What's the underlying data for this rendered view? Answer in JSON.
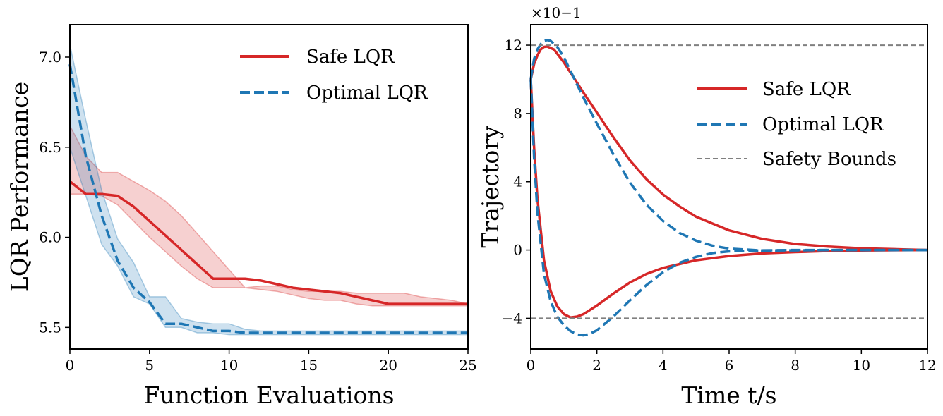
{
  "colors": {
    "safe": "#d62728",
    "safe_band": "#f2a6a6",
    "optimal": "#1f77b4",
    "optimal_band": "#a6c8e4",
    "bounds": "#808080"
  },
  "chart_data": [
    {
      "type": "line",
      "xlabel": "Function Evaluations",
      "ylabel": "LQR Performance",
      "xlim": [
        0,
        25
      ],
      "ylim": [
        5.38,
        7.18
      ],
      "xticks": [
        0,
        5,
        10,
        15,
        20,
        25
      ],
      "xtick_labels": [
        "0",
        "5",
        "10",
        "15",
        "20",
        "25"
      ],
      "yticks": [
        5.5,
        6.0,
        6.5,
        7.0
      ],
      "ytick_labels": [
        "5.5",
        "6.0",
        "6.5",
        "7.0"
      ],
      "legend_position": "top-right",
      "series": [
        {
          "name": "Safe LQR",
          "style": "solid",
          "x": [
            0,
            1,
            2,
            3,
            4,
            5,
            6,
            7,
            8,
            9,
            10,
            11,
            12,
            13,
            14,
            15,
            16,
            17,
            18,
            19,
            20,
            21,
            22,
            23,
            24,
            25
          ],
          "values": [
            6.31,
            6.24,
            6.24,
            6.23,
            6.17,
            6.09,
            6.01,
            5.93,
            5.85,
            5.77,
            5.77,
            5.77,
            5.76,
            5.74,
            5.72,
            5.71,
            5.7,
            5.69,
            5.67,
            5.65,
            5.63,
            5.63,
            5.63,
            5.63,
            5.63,
            5.63
          ],
          "band_upper": [
            6.62,
            6.45,
            6.36,
            6.36,
            6.31,
            6.26,
            6.2,
            6.12,
            6.02,
            5.92,
            5.82,
            5.72,
            5.73,
            5.73,
            5.71,
            5.7,
            5.7,
            5.7,
            5.69,
            5.69,
            5.69,
            5.69,
            5.67,
            5.66,
            5.65,
            5.63
          ],
          "band_lower": [
            6.24,
            6.24,
            6.23,
            6.18,
            6.09,
            6.0,
            5.92,
            5.84,
            5.77,
            5.72,
            5.72,
            5.72,
            5.71,
            5.7,
            5.68,
            5.66,
            5.65,
            5.65,
            5.63,
            5.62,
            5.62,
            5.62,
            5.62,
            5.62,
            5.62,
            5.62
          ]
        },
        {
          "name": "Optimal LQR",
          "style": "dashed",
          "x": [
            0,
            1,
            2,
            3,
            4,
            5,
            6,
            7,
            8,
            9,
            10,
            11,
            12,
            13,
            14,
            15,
            16,
            17,
            18,
            19,
            20,
            21,
            22,
            23,
            24,
            25
          ],
          "values": [
            6.96,
            6.45,
            6.12,
            5.87,
            5.72,
            5.64,
            5.52,
            5.52,
            5.5,
            5.48,
            5.48,
            5.47,
            5.47,
            5.47,
            5.47,
            5.47,
            5.47,
            5.47,
            5.47,
            5.47,
            5.47,
            5.47,
            5.47,
            5.47,
            5.47,
            5.47
          ],
          "band_upper": [
            7.07,
            6.65,
            6.26,
            5.99,
            5.86,
            5.67,
            5.67,
            5.55,
            5.53,
            5.52,
            5.52,
            5.49,
            5.48,
            5.48,
            5.48,
            5.48,
            5.48,
            5.48,
            5.48,
            5.48,
            5.48,
            5.48,
            5.48,
            5.48,
            5.48,
            5.48
          ],
          "band_lower": [
            6.5,
            6.23,
            5.96,
            5.84,
            5.67,
            5.63,
            5.5,
            5.5,
            5.47,
            5.47,
            5.46,
            5.46,
            5.46,
            5.46,
            5.46,
            5.46,
            5.46,
            5.46,
            5.46,
            5.46,
            5.46,
            5.46,
            5.46,
            5.46,
            5.46,
            5.46
          ]
        }
      ]
    },
    {
      "type": "line",
      "xlabel": "Time t/s",
      "ylabel": "Trajectory",
      "axis_multiplier": "×10−1",
      "xlim": [
        0,
        12
      ],
      "ylim": [
        -5.8,
        13.2
      ],
      "xticks": [
        0,
        2,
        4,
        6,
        8,
        10,
        12
      ],
      "xtick_labels": [
        "0",
        "2",
        "4",
        "6",
        "8",
        "10",
        "12"
      ],
      "yticks": [
        -4,
        0,
        4,
        8,
        12
      ],
      "ytick_labels": [
        "−4",
        "0",
        "4",
        "8",
        "12"
      ],
      "legend_position": "center-right",
      "series": [
        {
          "name": "Safe LQR",
          "style": "solid",
          "x": [
            0,
            0.1,
            0.2,
            0.3,
            0.4,
            0.5,
            0.7,
            1.0,
            1.3,
            1.6,
            2.0,
            2.5,
            3.0,
            3.5,
            4.0,
            4.5,
            5.0,
            6.0,
            7.0,
            8.0,
            9.0,
            10.0,
            11.0,
            12.0
          ],
          "values": [
            10.0,
            10.9,
            11.4,
            11.75,
            11.9,
            11.92,
            11.75,
            11.0,
            10.1,
            9.2,
            8.05,
            6.6,
            5.25,
            4.15,
            3.25,
            2.55,
            1.95,
            1.15,
            0.65,
            0.35,
            0.2,
            0.1,
            0.05,
            0.0
          ]
        },
        {
          "name": "Safe LQR",
          "style": "solid",
          "x": [
            0,
            0.1,
            0.2,
            0.4,
            0.6,
            0.8,
            1.0,
            1.2,
            1.4,
            1.6,
            2.0,
            2.5,
            3.0,
            3.5,
            4.0,
            5.0,
            6.0,
            7.0,
            8.0,
            9.0,
            10.0,
            12.0
          ],
          "values": [
            10.0,
            6.0,
            3.0,
            -0.6,
            -2.4,
            -3.3,
            -3.75,
            -3.95,
            -3.9,
            -3.75,
            -3.25,
            -2.55,
            -1.9,
            -1.4,
            -1.05,
            -0.6,
            -0.35,
            -0.2,
            -0.12,
            -0.06,
            -0.03,
            0.0
          ]
        },
        {
          "name": "Optimal LQR",
          "style": "dashed",
          "x": [
            0,
            0.1,
            0.2,
            0.3,
            0.4,
            0.5,
            0.6,
            0.8,
            1.0,
            1.3,
            1.6,
            2.0,
            2.5,
            3.0,
            3.5,
            4.0,
            4.5,
            5.0,
            5.5,
            6.0,
            7.0,
            8.0,
            9.0,
            10.0,
            12.0
          ],
          "values": [
            10.0,
            11.2,
            11.75,
            12.05,
            12.25,
            12.3,
            12.25,
            11.9,
            11.3,
            10.1,
            8.9,
            7.4,
            5.6,
            3.95,
            2.65,
            1.7,
            1.0,
            0.55,
            0.25,
            0.08,
            -0.03,
            -0.02,
            0.0,
            0.0,
            0.0
          ]
        },
        {
          "name": "Optimal LQR",
          "style": "dashed",
          "x": [
            0,
            0.1,
            0.2,
            0.4,
            0.6,
            0.8,
            1.0,
            1.2,
            1.4,
            1.6,
            1.8,
            2.0,
            2.5,
            3.0,
            3.5,
            4.0,
            4.5,
            5.0,
            5.5,
            6.0,
            7.0,
            8.0,
            10.0,
            12.0
          ],
          "values": [
            10.0,
            5.4,
            2.2,
            -1.4,
            -3.0,
            -3.9,
            -4.4,
            -4.75,
            -4.95,
            -5.0,
            -4.9,
            -4.7,
            -3.9,
            -2.95,
            -2.05,
            -1.3,
            -0.75,
            -0.4,
            -0.18,
            -0.08,
            -0.02,
            0.0,
            0.0,
            0.0
          ]
        },
        {
          "name": "Safety Bounds",
          "style": "dashed-thin",
          "x": [
            0,
            12
          ],
          "values": [
            12,
            12
          ]
        },
        {
          "name": "Safety Bounds",
          "style": "dashed-thin",
          "x": [
            0,
            12
          ],
          "values": [
            -4,
            -4
          ]
        }
      ],
      "legend": [
        "Safe LQR",
        "Optimal LQR",
        "Safety Bounds"
      ]
    }
  ]
}
